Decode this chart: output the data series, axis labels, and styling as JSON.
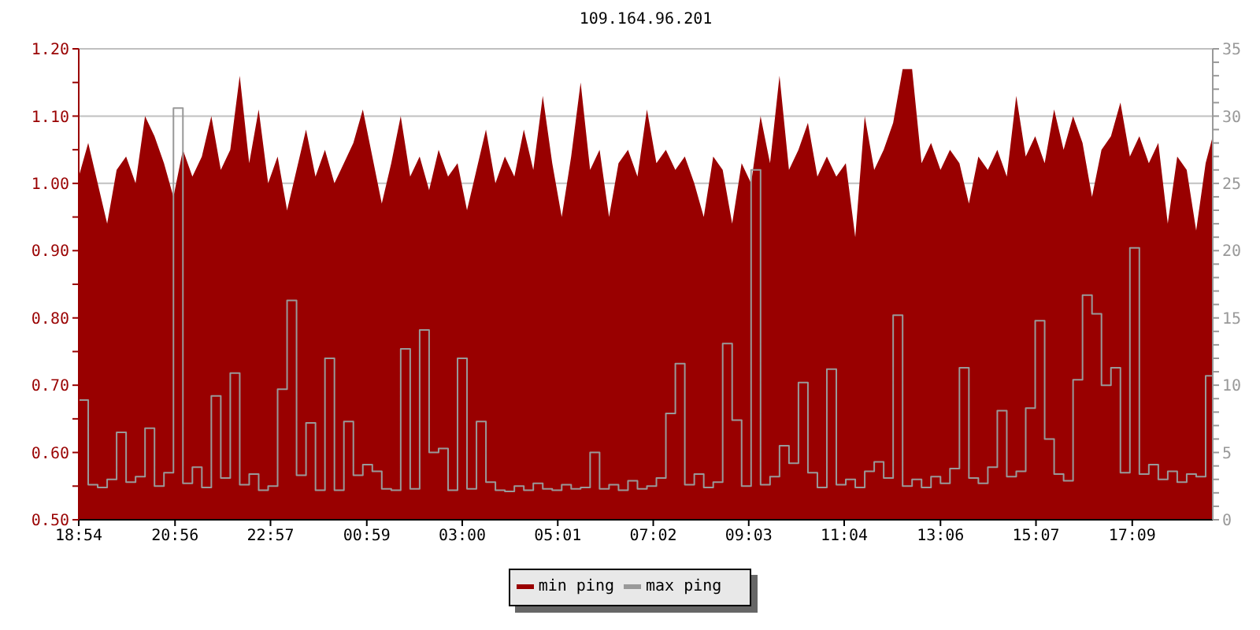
{
  "chart_data": {
    "type": "area",
    "title": "109.164.96.201",
    "x": [
      "2000-01-01T18:54",
      "2000-01-01T19:06",
      "2000-01-01T19:18",
      "2000-01-01T19:30",
      "2000-01-01T19:42",
      "2000-01-01T19:54",
      "2000-01-01T20:06",
      "2000-01-01T20:18",
      "2000-01-01T20:30",
      "2000-01-01T20:42",
      "2000-01-01T20:54",
      "2000-01-01T21:06",
      "2000-01-01T21:18",
      "2000-01-01T21:30",
      "2000-01-01T21:42",
      "2000-01-01T21:54",
      "2000-01-01T22:06",
      "2000-01-01T22:18",
      "2000-01-01T22:30",
      "2000-01-01T22:42",
      "2000-01-01T22:54",
      "2000-01-01T23:06",
      "2000-01-01T23:18",
      "2000-01-01T23:30",
      "2000-01-01T23:42",
      "2000-01-01T23:54",
      "2000-01-02T00:06",
      "2000-01-02T00:18",
      "2000-01-02T00:30",
      "2000-01-02T00:42",
      "2000-01-02T00:54",
      "2000-01-02T01:06",
      "2000-01-02T01:18",
      "2000-01-02T01:30",
      "2000-01-02T01:42",
      "2000-01-02T01:54",
      "2000-01-02T02:06",
      "2000-01-02T02:18",
      "2000-01-02T02:30",
      "2000-01-02T02:42",
      "2000-01-02T02:54",
      "2000-01-02T03:06",
      "2000-01-02T03:18",
      "2000-01-02T03:30",
      "2000-01-02T03:42",
      "2000-01-02T03:54",
      "2000-01-02T04:06",
      "2000-01-02T04:18",
      "2000-01-02T04:30",
      "2000-01-02T04:42",
      "2000-01-02T04:54",
      "2000-01-02T05:06",
      "2000-01-02T05:18",
      "2000-01-02T05:30",
      "2000-01-02T05:42",
      "2000-01-02T05:54",
      "2000-01-02T06:06",
      "2000-01-02T06:18",
      "2000-01-02T06:30",
      "2000-01-02T06:42",
      "2000-01-02T06:54",
      "2000-01-02T07:06",
      "2000-01-02T07:18",
      "2000-01-02T07:30",
      "2000-01-02T07:42",
      "2000-01-02T07:54",
      "2000-01-02T08:06",
      "2000-01-02T08:18",
      "2000-01-02T08:30",
      "2000-01-02T08:42",
      "2000-01-02T08:54",
      "2000-01-02T09:06",
      "2000-01-02T09:18",
      "2000-01-02T09:30",
      "2000-01-02T09:42",
      "2000-01-02T09:54",
      "2000-01-02T10:06",
      "2000-01-02T10:18",
      "2000-01-02T10:30",
      "2000-01-02T10:42",
      "2000-01-02T10:54",
      "2000-01-02T11:06",
      "2000-01-02T11:18",
      "2000-01-02T11:30",
      "2000-01-02T11:42",
      "2000-01-02T11:54",
      "2000-01-02T12:06",
      "2000-01-02T12:18",
      "2000-01-02T12:30",
      "2000-01-02T12:42",
      "2000-01-02T12:54",
      "2000-01-02T13:06",
      "2000-01-02T13:18",
      "2000-01-02T13:30",
      "2000-01-02T13:42",
      "2000-01-02T13:54",
      "2000-01-02T14:06",
      "2000-01-02T14:18",
      "2000-01-02T14:30",
      "2000-01-02T14:42",
      "2000-01-02T14:54",
      "2000-01-02T15:06",
      "2000-01-02T15:18",
      "2000-01-02T15:30",
      "2000-01-02T15:42",
      "2000-01-02T15:54",
      "2000-01-02T16:06",
      "2000-01-02T16:18",
      "2000-01-02T16:30",
      "2000-01-02T16:42",
      "2000-01-02T16:54",
      "2000-01-02T17:06",
      "2000-01-02T17:18",
      "2000-01-02T17:30",
      "2000-01-02T17:42",
      "2000-01-02T17:54",
      "2000-01-02T18:06",
      "2000-01-02T18:18",
      "2000-01-02T18:30",
      "2000-01-02T18:42",
      "2000-01-02T18:51"
    ],
    "series": [
      {
        "name": "min ping",
        "color": "#990000",
        "values": [
          1.01,
          1.06,
          1.0,
          0.94,
          1.02,
          1.04,
          1.0,
          1.1,
          1.07,
          1.03,
          0.98,
          1.05,
          1.01,
          1.04,
          1.1,
          1.02,
          1.05,
          1.16,
          1.03,
          1.11,
          1.0,
          1.04,
          0.96,
          1.02,
          1.08,
          1.01,
          1.05,
          1.0,
          1.03,
          1.06,
          1.11,
          1.04,
          0.97,
          1.03,
          1.1,
          1.01,
          1.04,
          0.99,
          1.05,
          1.01,
          1.03,
          0.96,
          1.02,
          1.08,
          1.0,
          1.04,
          1.01,
          1.08,
          1.02,
          1.13,
          1.03,
          0.95,
          1.04,
          1.15,
          1.02,
          1.05,
          0.95,
          1.03,
          1.05,
          1.01,
          1.11,
          1.03,
          1.05,
          1.02,
          1.04,
          1.0,
          0.95,
          1.04,
          1.02,
          0.94,
          1.03,
          1.0,
          1.1,
          1.03,
          1.16,
          1.02,
          1.05,
          1.09,
          1.01,
          1.04,
          1.01,
          1.03,
          0.92,
          1.1,
          1.02,
          1.05,
          1.09,
          1.17,
          1.17,
          1.03,
          1.06,
          1.02,
          1.05,
          1.03,
          0.97,
          1.04,
          1.02,
          1.05,
          1.01,
          1.13,
          1.04,
          1.07,
          1.03,
          1.11,
          1.05,
          1.1,
          1.06,
          0.98,
          1.05,
          1.07,
          1.12,
          1.04,
          1.07,
          1.03,
          1.06,
          0.94,
          1.04,
          1.02,
          0.93,
          1.03,
          1.07
        ]
      },
      {
        "name": "max ping",
        "type": "step",
        "color": "#999999",
        "axis": "y2",
        "values": [
          8.9,
          2.6,
          2.4,
          3.0,
          6.5,
          2.8,
          3.2,
          6.8,
          2.5,
          3.5,
          30.6,
          2.7,
          3.9,
          2.4,
          9.2,
          3.1,
          10.9,
          2.6,
          3.4,
          2.2,
          2.5,
          9.7,
          16.3,
          3.3,
          7.2,
          2.2,
          12.0,
          2.2,
          7.3,
          3.3,
          4.1,
          3.6,
          2.3,
          2.2,
          12.7,
          2.3,
          14.1,
          5.0,
          5.3,
          2.2,
          12.0,
          2.3,
          7.3,
          2.8,
          2.2,
          2.1,
          2.5,
          2.2,
          2.7,
          2.3,
          2.2,
          2.6,
          2.3,
          2.4,
          5.0,
          2.3,
          2.6,
          2.2,
          2.9,
          2.3,
          2.5,
          3.1,
          7.9,
          11.6,
          2.6,
          3.4,
          2.4,
          2.8,
          13.1,
          7.4,
          2.5,
          26.0,
          2.6,
          3.2,
          5.5,
          4.2,
          10.2,
          3.5,
          2.4,
          11.2,
          2.6,
          3.0,
          2.4,
          3.6,
          4.3,
          3.1,
          15.2,
          2.5,
          3.0,
          2.4,
          3.2,
          2.7,
          3.8,
          11.3,
          3.1,
          2.7,
          3.9,
          8.1,
          3.2,
          3.6,
          8.3,
          14.8,
          6.0,
          3.4,
          2.9,
          10.4,
          16.7,
          15.3,
          10.0,
          11.3,
          3.5,
          20.2,
          3.4,
          4.1,
          3.0,
          3.6,
          2.8,
          3.4,
          3.2,
          10.7,
          4.5
        ]
      }
    ],
    "xlim": [
      "2000-01-01T18:54",
      "2000-01-02T18:51"
    ],
    "xticks": [
      {
        "value": "2000-01-01T18:54",
        "label": "18:54"
      },
      {
        "value": "2000-01-01T20:56",
        "label": "20:56"
      },
      {
        "value": "2000-01-01T22:57",
        "label": "22:57"
      },
      {
        "value": "2000-01-02T00:59",
        "label": "00:59"
      },
      {
        "value": "2000-01-02T03:00",
        "label": "03:00"
      },
      {
        "value": "2000-01-02T05:01",
        "label": "05:01"
      },
      {
        "value": "2000-01-02T07:02",
        "label": "07:02"
      },
      {
        "value": "2000-01-02T09:03",
        "label": "09:03"
      },
      {
        "value": "2000-01-02T11:04",
        "label": "11:04"
      },
      {
        "value": "2000-01-02T13:06",
        "label": "13:06"
      },
      {
        "value": "2000-01-02T15:07",
        "label": "15:07"
      },
      {
        "value": "2000-01-02T17:09",
        "label": "17:09"
      }
    ],
    "ylim": [
      0.5,
      1.2
    ],
    "yticks": [
      {
        "value": 0.5,
        "label": "0.50"
      },
      {
        "value": 0.55,
        "label": null
      },
      {
        "value": 0.6,
        "label": "0.60"
      },
      {
        "value": 0.65,
        "label": null
      },
      {
        "value": 0.7,
        "label": "0.70"
      },
      {
        "value": 0.75,
        "label": null
      },
      {
        "value": 0.8,
        "label": "0.80"
      },
      {
        "value": 0.85,
        "label": null
      },
      {
        "value": 0.9,
        "label": "0.90"
      },
      {
        "value": 0.95,
        "label": null
      },
      {
        "value": 1.0,
        "label": "1.00"
      },
      {
        "value": 1.05,
        "label": null
      },
      {
        "value": 1.1,
        "label": "1.10"
      },
      {
        "value": 1.15,
        "label": null
      },
      {
        "value": 1.2,
        "label": "1.20"
      }
    ],
    "y2lim": [
      0,
      35
    ],
    "y2ticks": [
      0,
      {
        "value": 1,
        "label": null
      },
      {
        "value": 2,
        "label": null
      },
      {
        "value": 3,
        "label": null
      },
      {
        "value": 4,
        "label": null
      },
      5,
      {
        "value": 6,
        "label": null
      },
      {
        "value": 7,
        "label": null
      },
      {
        "value": 8,
        "label": null
      },
      {
        "value": 9,
        "label": null
      },
      10,
      {
        "value": 11,
        "label": null
      },
      {
        "value": 12,
        "label": null
      },
      {
        "value": 13,
        "label": null
      },
      {
        "value": 14,
        "label": null
      },
      15,
      {
        "value": 16,
        "label": null
      },
      {
        "value": 17,
        "label": null
      },
      {
        "value": 18,
        "label": null
      },
      {
        "value": 19,
        "label": null
      },
      20,
      {
        "value": 21,
        "label": null
      },
      {
        "value": 22,
        "label": null
      },
      {
        "value": 23,
        "label": null
      },
      {
        "value": 24,
        "label": null
      },
      25,
      {
        "value": 26,
        "label": null
      },
      {
        "value": 27,
        "label": null
      },
      {
        "value": 28,
        "label": null
      },
      {
        "value": 29,
        "label": null
      },
      30,
      {
        "value": 31,
        "label": null
      },
      {
        "value": 32,
        "label": null
      },
      {
        "value": 33,
        "label": null
      },
      {
        "value": 34,
        "label": null
      },
      35
    ],
    "grid": "y",
    "legend": "bottom"
  }
}
